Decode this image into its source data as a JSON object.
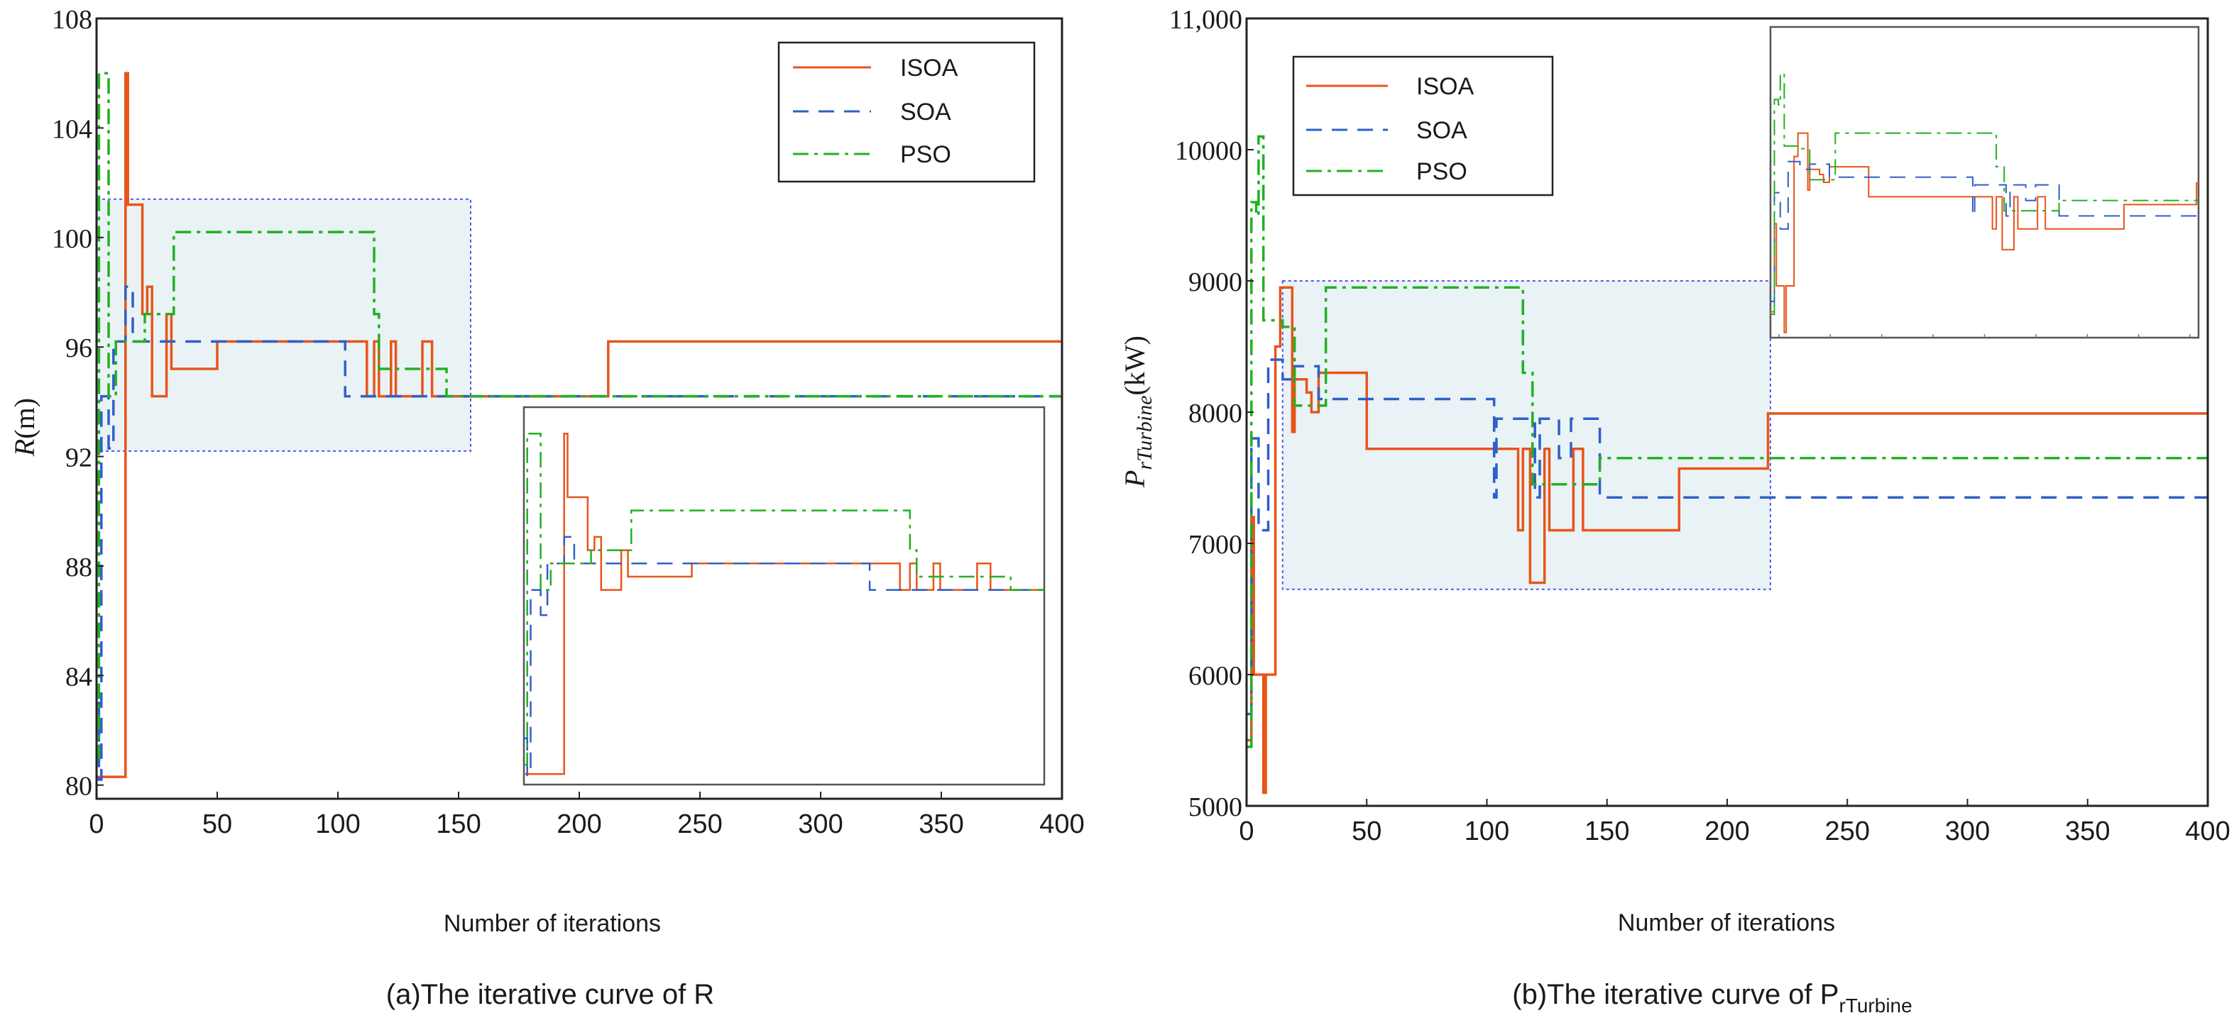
{
  "chart_data": [
    {
      "id": "a",
      "type": "line",
      "caption": "(a)The iterative curve of R",
      "xlabel": "Number of iterations",
      "ylabel_main": "R",
      "ylabel_unit": "(m)",
      "xlim": [
        0,
        400
      ],
      "ylim": [
        79.5,
        108
      ],
      "xticks": [
        "0",
        "50",
        "100",
        "150",
        "200",
        "250",
        "300",
        "350",
        "400"
      ],
      "yticks": [
        "80",
        "84",
        "88",
        "92",
        "96",
        "100",
        "104",
        "108"
      ],
      "legend": [
        "ISOA",
        "SOA",
        "PSO"
      ],
      "legend_position": "top-right",
      "highlight_region": {
        "x": [
          0,
          155
        ],
        "y": [
          92.2,
          101.4
        ]
      },
      "inset": {
        "x": [
          0,
          155
        ],
        "y": [
          79.5,
          108
        ],
        "position": "bottom-right"
      },
      "series": [
        {
          "name": "ISOA",
          "color": "#e8541a",
          "dash": "solid",
          "points": [
            [
              0,
              80.3
            ],
            [
              12,
              80.3
            ],
            [
              12,
              106
            ],
            [
              13,
              106
            ],
            [
              13,
              101.2
            ],
            [
              19,
              101.2
            ],
            [
              19,
              97.2
            ],
            [
              21,
              97.2
            ],
            [
              21,
              98.2
            ],
            [
              23,
              98.2
            ],
            [
              23,
              94.2
            ],
            [
              29,
              94.2
            ],
            [
              29,
              97.2
            ],
            [
              31,
              97.2
            ],
            [
              31,
              95.2
            ],
            [
              50,
              95.2
            ],
            [
              50,
              96.2
            ],
            [
              112,
              96.2
            ],
            [
              112,
              94.2
            ],
            [
              115,
              94.2
            ],
            [
              115,
              96.2
            ],
            [
              117,
              96.2
            ],
            [
              117,
              94.2
            ],
            [
              122,
              94.2
            ],
            [
              122,
              96.2
            ],
            [
              124,
              96.2
            ],
            [
              124,
              94.2
            ],
            [
              135,
              94.2
            ],
            [
              135,
              96.2
            ],
            [
              139,
              96.2
            ],
            [
              139,
              94.2
            ],
            [
              212,
              94.2
            ],
            [
              212,
              96.2
            ],
            [
              400,
              96.2
            ]
          ]
        },
        {
          "name": "SOA",
          "color": "#2f5fc8",
          "dash": "dashed",
          "points": [
            [
              0,
              83
            ],
            [
              1,
              83
            ],
            [
              1,
              80.2
            ],
            [
              2,
              80.2
            ],
            [
              2,
              94.2
            ],
            [
              5,
              94.2
            ],
            [
              5,
              92.3
            ],
            [
              7,
              92.3
            ],
            [
              7,
              96.2
            ],
            [
              12,
              96.2
            ],
            [
              12,
              98.2
            ],
            [
              15,
              98.2
            ],
            [
              15,
              96.2
            ],
            [
              103,
              96.2
            ],
            [
              103,
              94.2
            ],
            [
              400,
              94.2
            ]
          ]
        },
        {
          "name": "PSO",
          "color": "#22b022",
          "dash": "dashdot",
          "points": [
            [
              0,
              81
            ],
            [
              1,
              81
            ],
            [
              1,
              106
            ],
            [
              5,
              106
            ],
            [
              5,
              94.2
            ],
            [
              8,
              94.2
            ],
            [
              8,
              96.2
            ],
            [
              20,
              96.2
            ],
            [
              20,
              97.2
            ],
            [
              32,
              97.2
            ],
            [
              32,
              100.2
            ],
            [
              115,
              100.2
            ],
            [
              115,
              97.2
            ],
            [
              117,
              97.2
            ],
            [
              117,
              95.2
            ],
            [
              145,
              95.2
            ],
            [
              145,
              94.2
            ],
            [
              400,
              94.2
            ]
          ]
        }
      ]
    },
    {
      "id": "b",
      "type": "line",
      "caption_main": "(b)The iterative curve of P",
      "caption_sub": "rTurbine",
      "xlabel": "Number of iterations",
      "ylabel_main": "P",
      "ylabel_sub": "rTurbine",
      "ylabel_unit": "(kW)",
      "xlim": [
        0,
        400
      ],
      "ylim": [
        5000,
        11000
      ],
      "xticks": [
        "0",
        "50",
        "100",
        "150",
        "200",
        "250",
        "300",
        "350",
        "400"
      ],
      "yticks": [
        "5000",
        "6000",
        "7000",
        "8000",
        "9000",
        "10000",
        "11,000"
      ],
      "legend": [
        "ISOA",
        "SOA",
        "PSO"
      ],
      "legend_position": "top-left",
      "highlight_region": {
        "x": [
          15,
          218
        ],
        "y": [
          6650,
          9000
        ]
      },
      "inset": {
        "x": [
          0,
          218
        ],
        "y": [
          5000,
          11000
        ],
        "position": "top-right"
      },
      "series": [
        {
          "name": "ISOA",
          "color": "#e8541a",
          "dash": "solid",
          "points": [
            [
              0,
              5500
            ],
            [
              2,
              5500
            ],
            [
              2,
              7200
            ],
            [
              3,
              7200
            ],
            [
              3,
              6000
            ],
            [
              7,
              6000
            ],
            [
              7,
              5100
            ],
            [
              8,
              5100
            ],
            [
              8,
              6000
            ],
            [
              12,
              6000
            ],
            [
              12,
              8500
            ],
            [
              14,
              8500
            ],
            [
              14,
              8950
            ],
            [
              19,
              8950
            ],
            [
              19,
              7850
            ],
            [
              20,
              7850
            ],
            [
              20,
              8250
            ],
            [
              25,
              8250
            ],
            [
              25,
              8150
            ],
            [
              27,
              8150
            ],
            [
              27,
              8000
            ],
            [
              30,
              8000
            ],
            [
              30,
              8300
            ],
            [
              50,
              8300
            ],
            [
              50,
              7720
            ],
            [
              113,
              7720
            ],
            [
              113,
              7100
            ],
            [
              115,
              7100
            ],
            [
              115,
              7720
            ],
            [
              118,
              7720
            ],
            [
              118,
              6700
            ],
            [
              124,
              6700
            ],
            [
              124,
              7720
            ],
            [
              126,
              7720
            ],
            [
              126,
              7100
            ],
            [
              136,
              7100
            ],
            [
              136,
              7720
            ],
            [
              140,
              7720
            ],
            [
              140,
              7100
            ],
            [
              180,
              7100
            ],
            [
              180,
              7570
            ],
            [
              217,
              7570
            ],
            [
              217,
              7990
            ],
            [
              400,
              7990
            ]
          ]
        },
        {
          "name": "SOA",
          "color": "#2f5fc8",
          "dash": "dashed",
          "points": [
            [
              0,
              5700
            ],
            [
              2,
              5700
            ],
            [
              2,
              7800
            ],
            [
              5,
              7800
            ],
            [
              5,
              7100
            ],
            [
              9,
              7100
            ],
            [
              9,
              8400
            ],
            [
              15,
              8400
            ],
            [
              15,
              8250
            ],
            [
              20,
              8250
            ],
            [
              20,
              8350
            ],
            [
              30,
              8350
            ],
            [
              30,
              8100
            ],
            [
              103,
              8100
            ],
            [
              103,
              7350
            ],
            [
              104,
              7350
            ],
            [
              104,
              7950
            ],
            [
              120,
              7950
            ],
            [
              120,
              7350
            ],
            [
              122,
              7350
            ],
            [
              122,
              7950
            ],
            [
              130,
              7950
            ],
            [
              130,
              7650
            ],
            [
              135,
              7650
            ],
            [
              135,
              7950
            ],
            [
              147,
              7950
            ],
            [
              147,
              7350
            ],
            [
              400,
              7350
            ]
          ]
        },
        {
          "name": "PSO",
          "color": "#22b022",
          "dash": "dashdot",
          "points": [
            [
              0,
              5450
            ],
            [
              2,
              5450
            ],
            [
              2,
              9600
            ],
            [
              4,
              9600
            ],
            [
              4,
              9500
            ],
            [
              5,
              9500
            ],
            [
              5,
              10100
            ],
            [
              7,
              10100
            ],
            [
              7,
              8700
            ],
            [
              15,
              8700
            ],
            [
              15,
              8650
            ],
            [
              20,
              8650
            ],
            [
              20,
              8050
            ],
            [
              33,
              8050
            ],
            [
              33,
              8950
            ],
            [
              115,
              8950
            ],
            [
              115,
              8300
            ],
            [
              119,
              8300
            ],
            [
              119,
              7450
            ],
            [
              147,
              7450
            ],
            [
              147,
              7650
            ],
            [
              400,
              7650
            ]
          ]
        }
      ]
    }
  ]
}
